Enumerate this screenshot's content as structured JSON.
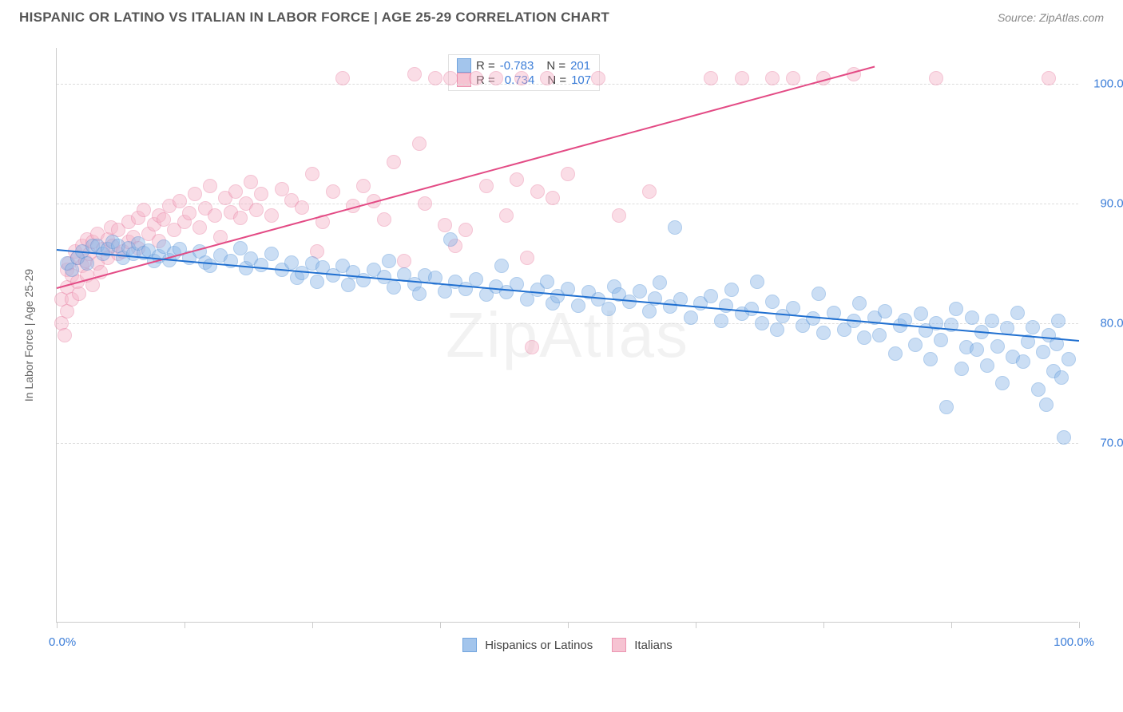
{
  "header": {
    "title": "HISPANIC OR LATINO VS ITALIAN IN LABOR FORCE | AGE 25-29 CORRELATION CHART",
    "source": "Source: ZipAtlas.com"
  },
  "watermark": "ZipAtlas",
  "chart": {
    "type": "scatter",
    "y_axis_title": "In Labor Force | Age 25-29",
    "background_color": "#ffffff",
    "grid_color": "#dddddd",
    "axis_color": "#cccccc",
    "tick_label_color": "#3b7dd8",
    "tick_label_fontsize": 15,
    "xlim": [
      0,
      100
    ],
    "ylim": [
      55,
      103
    ],
    "x_ticks": [
      0,
      12.5,
      25,
      37.5,
      50,
      62.5,
      75,
      87.5,
      100
    ],
    "x_tick_labels": {
      "0": "0.0%",
      "100": "100.0%"
    },
    "y_gridlines": [
      70,
      80,
      90,
      100
    ],
    "y_tick_labels": {
      "70": "70.0%",
      "80": "80.0%",
      "90": "90.0%",
      "100": "100.0%"
    },
    "marker_radius": 9,
    "marker_opacity": 0.45,
    "trend_line_width": 2,
    "series": {
      "hispanic": {
        "label": "Hispanics or Latinos",
        "fill_color": "#8db7e8",
        "stroke_color": "#4f8fd6",
        "trend_color": "#1f6fd0",
        "R": "-0.783",
        "N": "201",
        "trend": {
          "x1": 0,
          "y1": 86.2,
          "x2": 100,
          "y2": 78.6
        },
        "points": [
          [
            1,
            85
          ],
          [
            1.5,
            84.5
          ],
          [
            2,
            85.5
          ],
          [
            2.5,
            86
          ],
          [
            3,
            85
          ],
          [
            3.5,
            86.5
          ],
          [
            4,
            86.5
          ],
          [
            4.5,
            85.8
          ],
          [
            5,
            86.2
          ],
          [
            5.5,
            86.8
          ],
          [
            6,
            86.5
          ],
          [
            6.5,
            85.5
          ],
          [
            7,
            86.3
          ],
          [
            7.5,
            85.8
          ],
          [
            8,
            86.7
          ],
          [
            8.5,
            85.9
          ],
          [
            9,
            86.1
          ],
          [
            9.5,
            85.2
          ],
          [
            10,
            85.6
          ],
          [
            10.5,
            86.4
          ],
          [
            11,
            85.3
          ],
          [
            11.5,
            85.9
          ],
          [
            12,
            86.2
          ],
          [
            13,
            85.5
          ],
          [
            14,
            86.0
          ],
          [
            14.5,
            85.1
          ],
          [
            15,
            84.8
          ],
          [
            16,
            85.7
          ],
          [
            17,
            85.2
          ],
          [
            18,
            86.3
          ],
          [
            18.5,
            84.6
          ],
          [
            19,
            85.4
          ],
          [
            20,
            84.9
          ],
          [
            21,
            85.8
          ],
          [
            22,
            84.5
          ],
          [
            23,
            85.1
          ],
          [
            23.5,
            83.8
          ],
          [
            24,
            84.2
          ],
          [
            25,
            85.0
          ],
          [
            25.5,
            83.5
          ],
          [
            26,
            84.7
          ],
          [
            27,
            84.0
          ],
          [
            28,
            84.8
          ],
          [
            28.5,
            83.2
          ],
          [
            29,
            84.3
          ],
          [
            30,
            83.6
          ],
          [
            31,
            84.5
          ],
          [
            32,
            83.9
          ],
          [
            32.5,
            85.2
          ],
          [
            33,
            83.0
          ],
          [
            34,
            84.1
          ],
          [
            35,
            83.3
          ],
          [
            35.5,
            82.5
          ],
          [
            36,
            84.0
          ],
          [
            37,
            83.8
          ],
          [
            38,
            82.7
          ],
          [
            38.5,
            87.0
          ],
          [
            39,
            83.5
          ],
          [
            40,
            82.9
          ],
          [
            41,
            83.7
          ],
          [
            42,
            82.4
          ],
          [
            43,
            83.1
          ],
          [
            43.5,
            84.8
          ],
          [
            44,
            82.6
          ],
          [
            45,
            83.3
          ],
          [
            46,
            82.0
          ],
          [
            47,
            82.8
          ],
          [
            48,
            83.5
          ],
          [
            48.5,
            81.7
          ],
          [
            49,
            82.3
          ],
          [
            50,
            82.9
          ],
          [
            51,
            81.5
          ],
          [
            52,
            82.6
          ],
          [
            53,
            82.0
          ],
          [
            54,
            81.2
          ],
          [
            54.5,
            83.1
          ],
          [
            55,
            82.4
          ],
          [
            56,
            81.8
          ],
          [
            57,
            82.7
          ],
          [
            58,
            81.0
          ],
          [
            58.5,
            82.1
          ],
          [
            59,
            83.4
          ],
          [
            60,
            81.4
          ],
          [
            60.5,
            88.0
          ],
          [
            61,
            82.0
          ],
          [
            62,
            80.5
          ],
          [
            63,
            81.7
          ],
          [
            64,
            82.3
          ],
          [
            65,
            80.2
          ],
          [
            65.5,
            81.5
          ],
          [
            66,
            82.8
          ],
          [
            67,
            80.8
          ],
          [
            68,
            81.2
          ],
          [
            68.5,
            83.5
          ],
          [
            69,
            80.0
          ],
          [
            70,
            81.8
          ],
          [
            70.5,
            79.5
          ],
          [
            71,
            80.6
          ],
          [
            72,
            81.3
          ],
          [
            73,
            79.8
          ],
          [
            74,
            80.4
          ],
          [
            74.5,
            82.5
          ],
          [
            75,
            79.2
          ],
          [
            76,
            80.9
          ],
          [
            77,
            79.5
          ],
          [
            78,
            80.2
          ],
          [
            78.5,
            81.7
          ],
          [
            79,
            78.8
          ],
          [
            80,
            80.5
          ],
          [
            80.5,
            79.0
          ],
          [
            81,
            81.0
          ],
          [
            82,
            77.5
          ],
          [
            82.5,
            79.8
          ],
          [
            83,
            80.3
          ],
          [
            84,
            78.2
          ],
          [
            84.5,
            80.8
          ],
          [
            85,
            79.4
          ],
          [
            85.5,
            77.0
          ],
          [
            86,
            80.0
          ],
          [
            86.5,
            78.6
          ],
          [
            87,
            73.0
          ],
          [
            87.5,
            79.9
          ],
          [
            88,
            81.2
          ],
          [
            88.5,
            76.2
          ],
          [
            89,
            78.0
          ],
          [
            89.5,
            80.5
          ],
          [
            90,
            77.8
          ],
          [
            90.5,
            79.3
          ],
          [
            91,
            76.5
          ],
          [
            91.5,
            80.2
          ],
          [
            92,
            78.1
          ],
          [
            92.5,
            75.0
          ],
          [
            93,
            79.6
          ],
          [
            93.5,
            77.2
          ],
          [
            94,
            80.9
          ],
          [
            94.5,
            76.8
          ],
          [
            95,
            78.5
          ],
          [
            95.5,
            79.7
          ],
          [
            96,
            74.5
          ],
          [
            96.5,
            77.6
          ],
          [
            96.8,
            73.2
          ],
          [
            97,
            79.0
          ],
          [
            97.5,
            76.0
          ],
          [
            97.8,
            78.3
          ],
          [
            98,
            80.2
          ],
          [
            98.3,
            75.5
          ],
          [
            98.5,
            70.5
          ],
          [
            99,
            77.0
          ]
        ]
      },
      "italian": {
        "label": "Italians",
        "fill_color": "#f5b5c8",
        "stroke_color": "#e87ba0",
        "trend_color": "#e34b85",
        "R": "0.734",
        "N": "107",
        "trend": {
          "x1": 0,
          "y1": 83.0,
          "x2": 80,
          "y2": 101.5
        },
        "points": [
          [
            0.5,
            80
          ],
          [
            0.5,
            82
          ],
          [
            0.8,
            79
          ],
          [
            1,
            83
          ],
          [
            1,
            84.5
          ],
          [
            1,
            81
          ],
          [
            1.2,
            85
          ],
          [
            1.5,
            84
          ],
          [
            1.5,
            82
          ],
          [
            1.8,
            86
          ],
          [
            2,
            85.5
          ],
          [
            2,
            83.5
          ],
          [
            2.2,
            82.5
          ],
          [
            2.5,
            86.5
          ],
          [
            2.5,
            84.8
          ],
          [
            2.8,
            85.2
          ],
          [
            3,
            84
          ],
          [
            3,
            87
          ],
          [
            3.2,
            85.8
          ],
          [
            3.5,
            83.2
          ],
          [
            3.5,
            86.8
          ],
          [
            4,
            85
          ],
          [
            4,
            87.5
          ],
          [
            4.3,
            84.3
          ],
          [
            4.5,
            86.2
          ],
          [
            5,
            87
          ],
          [
            5,
            85.5
          ],
          [
            5.3,
            88
          ],
          [
            5.5,
            86.5
          ],
          [
            6,
            85.8
          ],
          [
            6,
            87.8
          ],
          [
            6.5,
            86
          ],
          [
            7,
            88.5
          ],
          [
            7,
            86.8
          ],
          [
            7.5,
            87.2
          ],
          [
            8,
            88.8
          ],
          [
            8,
            86.3
          ],
          [
            8.5,
            89.5
          ],
          [
            9,
            87.5
          ],
          [
            9.5,
            88.3
          ],
          [
            10,
            89
          ],
          [
            10,
            86.9
          ],
          [
            10.5,
            88.7
          ],
          [
            11,
            89.8
          ],
          [
            11.5,
            87.8
          ],
          [
            12,
            90.2
          ],
          [
            12.5,
            88.5
          ],
          [
            13,
            89.2
          ],
          [
            13.5,
            90.8
          ],
          [
            14,
            88
          ],
          [
            14.5,
            89.6
          ],
          [
            15,
            91.5
          ],
          [
            15.5,
            89
          ],
          [
            16,
            87.2
          ],
          [
            16.5,
            90.5
          ],
          [
            17,
            89.3
          ],
          [
            17.5,
            91
          ],
          [
            18,
            88.8
          ],
          [
            18.5,
            90
          ],
          [
            19,
            91.8
          ],
          [
            19.5,
            89.5
          ],
          [
            20,
            90.8
          ],
          [
            21,
            89
          ],
          [
            22,
            91.2
          ],
          [
            23,
            90.3
          ],
          [
            24,
            89.7
          ],
          [
            25,
            92.5
          ],
          [
            25.5,
            86
          ],
          [
            26,
            88.5
          ],
          [
            27,
            91
          ],
          [
            28,
            100.5
          ],
          [
            29,
            89.8
          ],
          [
            30,
            91.5
          ],
          [
            31,
            90.2
          ],
          [
            32,
            88.7
          ],
          [
            33,
            93.5
          ],
          [
            34,
            85.2
          ],
          [
            35,
            100.8
          ],
          [
            35.5,
            95
          ],
          [
            36,
            90
          ],
          [
            37,
            100.5
          ],
          [
            38,
            88.2
          ],
          [
            38.5,
            100.5
          ],
          [
            39,
            86.5
          ],
          [
            40,
            87.8
          ],
          [
            41,
            100.5
          ],
          [
            42,
            91.5
          ],
          [
            43,
            100.5
          ],
          [
            44,
            89
          ],
          [
            45,
            92
          ],
          [
            45.5,
            100.5
          ],
          [
            46,
            85.5
          ],
          [
            46.5,
            78
          ],
          [
            47,
            91
          ],
          [
            48,
            100.5
          ],
          [
            48.5,
            90.5
          ],
          [
            50,
            92.5
          ],
          [
            53,
            100.5
          ],
          [
            55,
            89
          ],
          [
            58,
            91
          ],
          [
            64,
            100.5
          ],
          [
            67,
            100.5
          ],
          [
            70,
            100.5
          ],
          [
            72,
            100.5
          ],
          [
            75,
            100.5
          ],
          [
            78,
            100.8
          ],
          [
            86,
            100.5
          ],
          [
            97,
            100.5
          ]
        ]
      }
    }
  },
  "legend": {
    "items": [
      {
        "key": "hispanic",
        "label": "Hispanics or Latinos"
      },
      {
        "key": "italian",
        "label": "Italians"
      }
    ]
  }
}
